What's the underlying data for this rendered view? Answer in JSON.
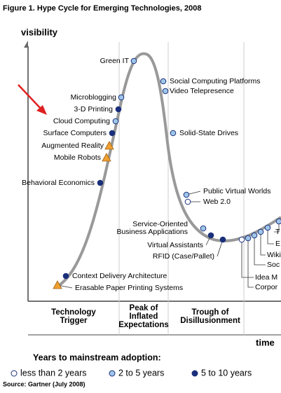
{
  "title": "Figure 1. Hype Cycle for Emerging Technologies, 2008",
  "y_axis_label": "visibility",
  "x_axis_label": "time",
  "phases": [
    {
      "lines": [
        "Technology",
        "Trigger"
      ]
    },
    {
      "lines": [
        "Peak of",
        "Inflated",
        "Expectations"
      ]
    },
    {
      "lines": [
        "Trough of",
        "Disillusionment"
      ]
    }
  ],
  "technologies": [
    {
      "lines": [
        "Green IT"
      ],
      "color": "#9ec5e8",
      "shape": "circle"
    },
    {
      "lines": [
        "Social Computing Platforms"
      ],
      "color": "#9ec5e8",
      "shape": "circle"
    },
    {
      "lines": [
        "Video Telepresence"
      ],
      "color": "#9ec5e8",
      "shape": "circle"
    },
    {
      "lines": [
        "Microblogging"
      ],
      "color": "#9ec5e8",
      "shape": "circle"
    },
    {
      "lines": [
        "3-D Printing"
      ],
      "color": "#1a2f7a",
      "shape": "circle"
    },
    {
      "lines": [
        "Cloud Computing"
      ],
      "color": "#9ec5e8",
      "shape": "circle"
    },
    {
      "lines": [
        "Surface Computers"
      ],
      "color": "#1a2f7a",
      "shape": "circle"
    },
    {
      "lines": [
        "Augmented Reality"
      ],
      "color": "#f0a030",
      "shape": "triangle"
    },
    {
      "lines": [
        "Mobile Robots"
      ],
      "color": "#f0a030",
      "shape": "triangle"
    },
    {
      "lines": [
        "Behavioral Economics"
      ],
      "color": "#1a2f7a",
      "shape": "circle"
    },
    {
      "lines": [
        "Solid-State Drives"
      ],
      "color": "#9ec5e8",
      "shape": "circle"
    },
    {
      "lines": [
        "Public Virtual Worlds"
      ],
      "color": "#9ec5e8",
      "shape": "circle"
    },
    {
      "lines": [
        "Web 2.0"
      ],
      "color": "#ffffff",
      "shape": "circle"
    },
    {
      "lines": [
        "Service-Oriented",
        "Business Applications"
      ],
      "color": "#9ec5e8",
      "shape": "circle"
    },
    {
      "lines": [
        "Virtual Assistants"
      ],
      "color": "#1a2f7a",
      "shape": "circle"
    },
    {
      "lines": [
        "RFID (Case/Pallet)"
      ],
      "color": "#1a2f7a",
      "shape": "circle"
    },
    {
      "lines": [
        "Context Delivery Architecture"
      ],
      "color": "#1a2f7a",
      "shape": "circle"
    },
    {
      "lines": [
        "Erasable Paper Printing Systems"
      ],
      "color": "#f0a030",
      "shape": "triangle"
    },
    {
      "lines": [
        "Idea M"
      ],
      "color": "#ffffff",
      "shape": "circle"
    },
    {
      "lines": [
        "Corpor"
      ],
      "color": "#9ec5e8",
      "shape": "circle"
    },
    {
      "lines": [
        "Soc"
      ],
      "color": "#9ec5e8",
      "shape": "circle"
    },
    {
      "lines": [
        "Wiki"
      ],
      "color": "#9ec5e8",
      "shape": "circle"
    },
    {
      "lines": [
        "E"
      ],
      "color": "#9ec5e8",
      "shape": "circle"
    },
    {
      "lines": [
        "T"
      ],
      "color": "#9ec5e8",
      "shape": "circle"
    }
  ],
  "legend": {
    "title": "Years to mainstream adoption:",
    "items": [
      {
        "label": "less than 2 years",
        "color": "#ffffff"
      },
      {
        "label": "2 to 5 years",
        "color": "#9ec5e8"
      },
      {
        "label": "5 to 10 years",
        "color": "#1a2f7a"
      }
    ]
  },
  "source": "Source: Gartner (July 2008)"
}
